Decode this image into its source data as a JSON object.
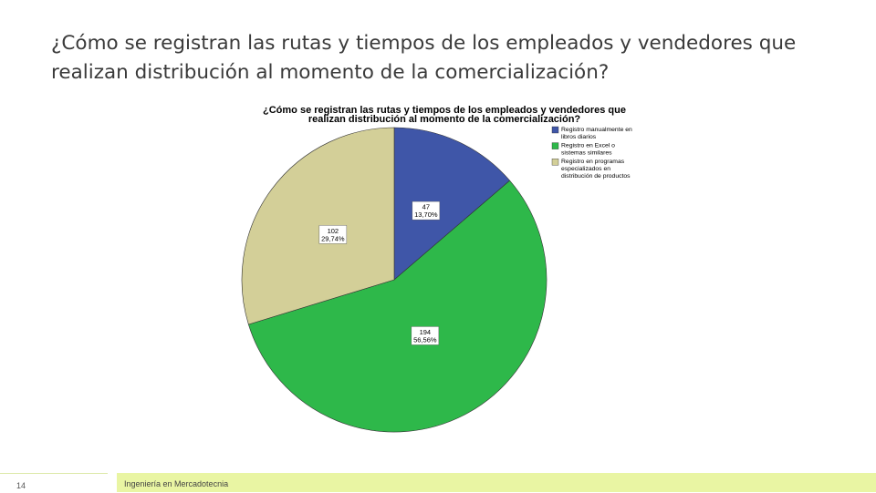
{
  "slide": {
    "title": "¿Cómo se registran las rutas y tiempos de los empleados y vendedores que realizan distribución al momento de la comercialización?",
    "page_number": "14",
    "footer": "Ingeniería en Mercadotecnia"
  },
  "chart_data": {
    "type": "pie",
    "title_lines": [
      "¿Cómo se registran las rutas y tiempos de los empleados y vendedores que",
      "realizan distribución al momento de la comercialización?"
    ],
    "slices": [
      {
        "legend_lines": [
          "Registro manualmente en",
          "libros diarios"
        ],
        "count": "47",
        "percent": "13,70%",
        "value": 47,
        "color": "#3f56a8"
      },
      {
        "legend_lines": [
          "Registro en Excel o",
          "sistemas similares"
        ],
        "count": "194",
        "percent": "56,56%",
        "value": 194,
        "color": "#2eb84a"
      },
      {
        "legend_lines": [
          "Registro en programas",
          "especializados en",
          "distribución de productos"
        ],
        "count": "102",
        "percent": "29,74%",
        "value": 102,
        "color": "#d3cf98"
      }
    ],
    "legend_position": "top-right"
  }
}
